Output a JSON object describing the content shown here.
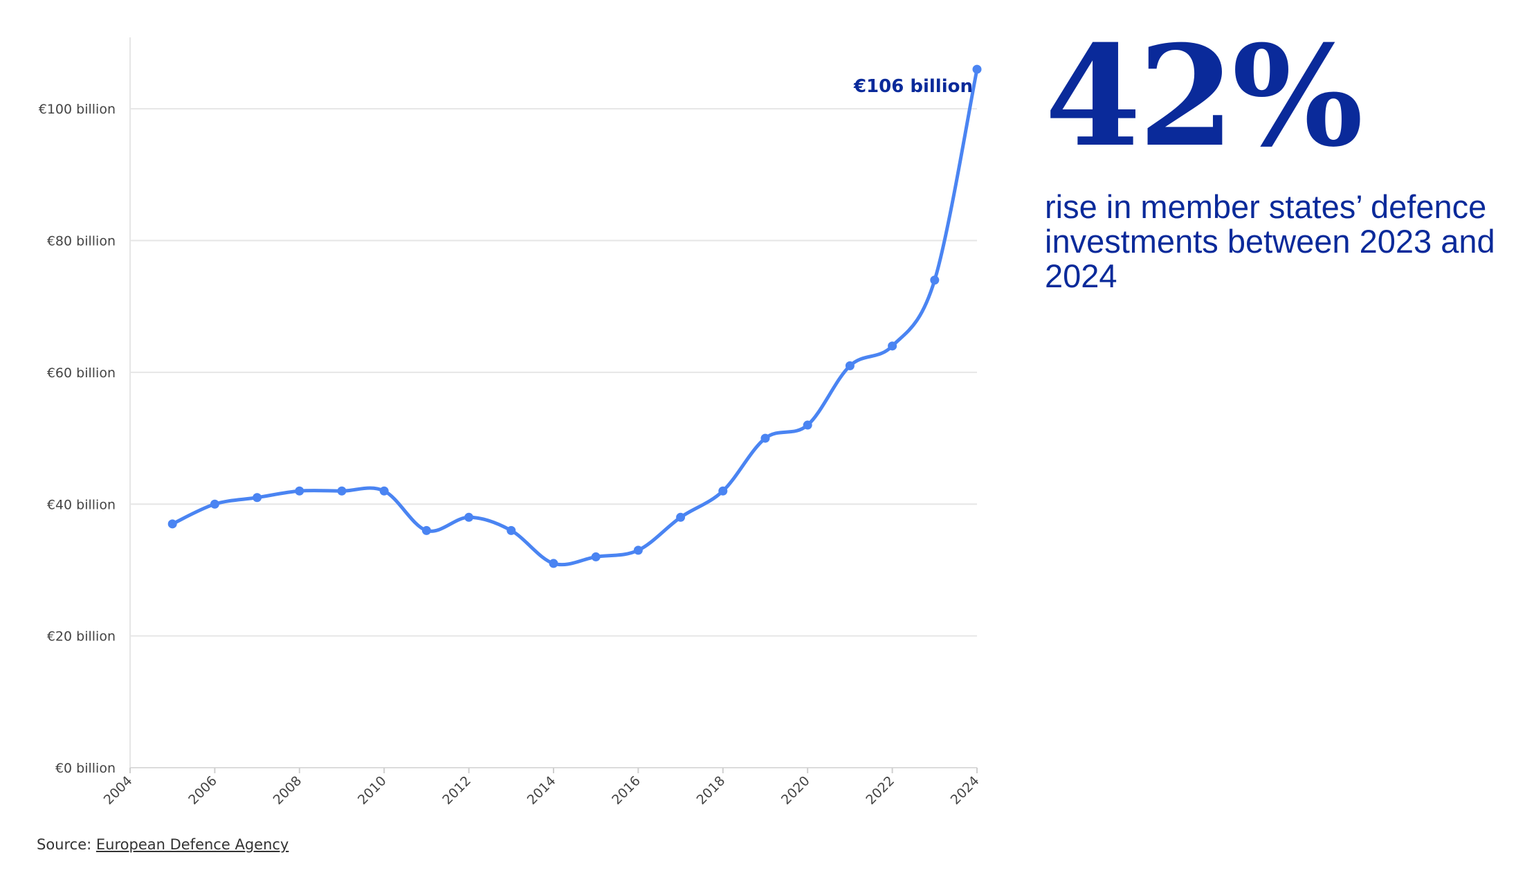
{
  "stat": {
    "value": "42%",
    "description": "rise in member states’ defence investments between 2023 and 2024"
  },
  "source": {
    "prefix": "Source: ",
    "link_text": "European Defence Agency"
  },
  "colors": {
    "line": "#4a84f2",
    "accent": "#0a2a9a",
    "grid": "#e6e6e6",
    "axis_text": "#444444"
  },
  "chart_data": {
    "type": "line",
    "title": "",
    "xlabel": "",
    "ylabel": "",
    "x": [
      2005,
      2006,
      2007,
      2008,
      2009,
      2010,
      2011,
      2012,
      2013,
      2014,
      2015,
      2016,
      2017,
      2018,
      2019,
      2020,
      2021,
      2022,
      2023,
      2024
    ],
    "series": [
      {
        "values": [
          37,
          40,
          41,
          42,
          42,
          42,
          36,
          38,
          36,
          31,
          32,
          33,
          38,
          42,
          50,
          52,
          61,
          64,
          74,
          106
        ]
      }
    ],
    "xlim": [
      2004,
      2024
    ],
    "ylim": [
      0,
      110
    ],
    "x_ticks": [
      2004,
      2006,
      2008,
      2010,
      2012,
      2014,
      2016,
      2018,
      2020,
      2022,
      2024
    ],
    "y_ticks": [
      0,
      20,
      40,
      60,
      80,
      100
    ],
    "y_tick_labels": [
      "€0 billion",
      "€20 billion",
      "€40 billion",
      "€60 billion",
      "€80 billion",
      "€100 billion"
    ],
    "annotation": {
      "x": 2024,
      "y": 106,
      "text": "€106 billion"
    },
    "grid": true,
    "legend": "none"
  }
}
